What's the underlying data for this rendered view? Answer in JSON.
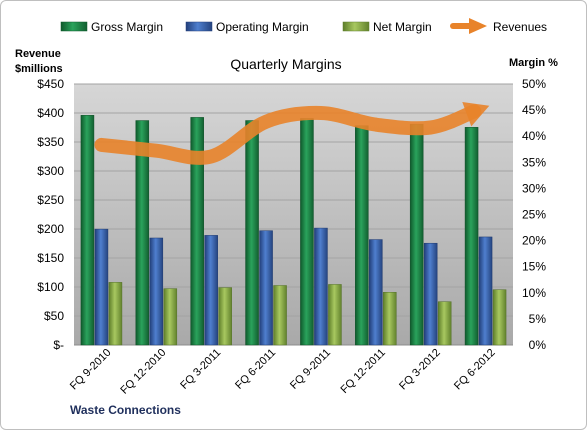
{
  "chart_data": {
    "type": "bar",
    "title": "Quarterly Margins",
    "company": "Waste Connections",
    "left_axis_title": [
      "Revenue",
      "$millions"
    ],
    "right_axis_title": "Margin %",
    "categories": [
      "FQ 9-2010",
      "FQ 12-2010",
      "FQ 3-2011",
      "FQ 6-2011",
      "FQ 9-2011",
      "FQ 12-2011",
      "FQ 3-2012",
      "FQ 6-2012"
    ],
    "series": [
      {
        "name": "Gross Margin",
        "axis": "right",
        "values": [
          44.0,
          43.0,
          43.6,
          43.0,
          43.4,
          42.0,
          42.3,
          41.7
        ],
        "color": "#1e8b4a"
      },
      {
        "name": "Operating Margin",
        "axis": "right",
        "values": [
          22.2,
          20.5,
          21.0,
          21.9,
          22.4,
          20.2,
          19.5,
          20.7
        ],
        "color": "#3a66b0"
      },
      {
        "name": "Net Margin",
        "axis": "right",
        "values": [
          12.0,
          10.8,
          11.0,
          11.4,
          11.6,
          10.1,
          8.3,
          10.6
        ],
        "color": "#8fb34a"
      },
      {
        "name": "Revenues",
        "axis": "left",
        "type": "line",
        "values": [
          345,
          335,
          325,
          385,
          400,
          380,
          375,
          410
        ],
        "color": "#e8832a"
      }
    ],
    "left_axis": {
      "min": 0,
      "max": 450,
      "step": 50,
      "tick_labels": [
        "$-",
        "$50",
        "$100",
        "$150",
        "$200",
        "$250",
        "$300",
        "$350",
        "$400",
        "$450"
      ]
    },
    "right_axis": {
      "min": 0,
      "max": 50,
      "step": 5,
      "tick_labels": [
        "0%",
        "5%",
        "10%",
        "15%",
        "20%",
        "25%",
        "30%",
        "35%",
        "40%",
        "45%",
        "50%"
      ]
    },
    "grid": true,
    "legend": "top"
  }
}
